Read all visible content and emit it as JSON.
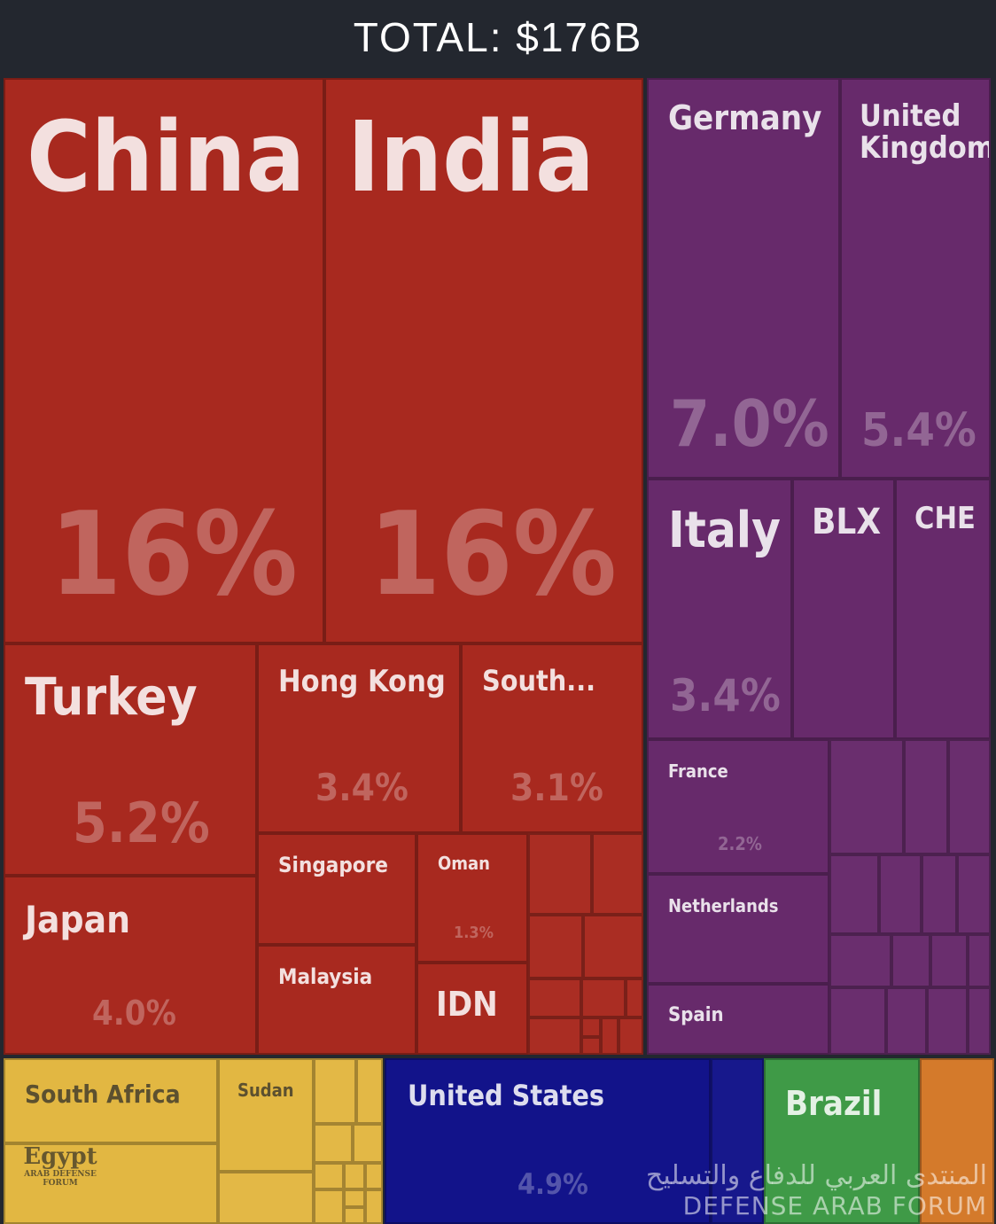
{
  "header": {
    "total_label": "TOTAL: $176B"
  },
  "colors": {
    "asia": "#a8291f",
    "europe": "#672a6b",
    "africa": "#e2b742",
    "north_america": "#12138a",
    "south_america": "#3f9a47",
    "oceania": "#d47a2b"
  },
  "chart_data": {
    "type": "treemap",
    "total": "$176B",
    "tiles": [
      {
        "name": "China",
        "value": "16%",
        "region": "asia"
      },
      {
        "name": "India",
        "value": "16%",
        "region": "asia"
      },
      {
        "name": "Turkey",
        "value": "5.2%",
        "region": "asia"
      },
      {
        "name": "Hong Kong",
        "value": "3.4%",
        "region": "asia"
      },
      {
        "name": "South...",
        "value": "3.1%",
        "region": "asia"
      },
      {
        "name": "Japan",
        "value": "4.0%",
        "region": "asia"
      },
      {
        "name": "Singapore",
        "value": "",
        "region": "asia"
      },
      {
        "name": "Oman",
        "value": "1.3%",
        "region": "asia"
      },
      {
        "name": "Malaysia",
        "value": "",
        "region": "asia"
      },
      {
        "name": "IDN",
        "value": "",
        "region": "asia"
      },
      {
        "name": "Germany",
        "value": "7.0%",
        "region": "europe"
      },
      {
        "name": "United Kingdom",
        "value": "5.4%",
        "region": "europe"
      },
      {
        "name": "Italy",
        "value": "3.4%",
        "region": "europe"
      },
      {
        "name": "BLX",
        "value": "",
        "region": "europe"
      },
      {
        "name": "CHE",
        "value": "",
        "region": "europe"
      },
      {
        "name": "France",
        "value": "2.2%",
        "region": "europe"
      },
      {
        "name": "Netherlands",
        "value": "",
        "region": "europe"
      },
      {
        "name": "Spain",
        "value": "",
        "region": "europe"
      },
      {
        "name": "South Africa",
        "value": "",
        "region": "africa"
      },
      {
        "name": "Sudan",
        "value": "",
        "region": "africa"
      },
      {
        "name": "Egypt",
        "value": "",
        "region": "africa"
      },
      {
        "name": "United States",
        "value": "4.9%",
        "region": "north_america"
      },
      {
        "name": "Brazil",
        "value": "",
        "region": "south_america"
      },
      {
        "name": "",
        "value": "",
        "region": "oceania"
      }
    ]
  },
  "watermark": {
    "arabic": "المنتدى العربي للدفاع والتسليح",
    "english": "DEFENSE ARAB FORUM",
    "logo_text": "Egypt",
    "logo_sub": "ARAB DEFENSE FORUM"
  }
}
